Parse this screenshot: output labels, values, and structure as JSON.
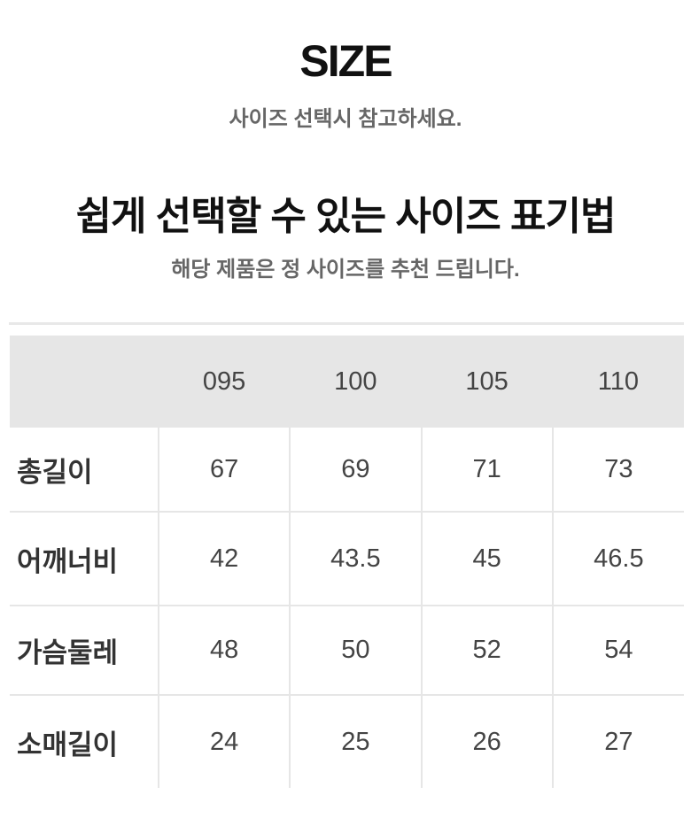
{
  "title": "SIZE",
  "subtitle": "사이즈 선택시 참고하세요.",
  "heading": "쉽게 선택할 수 있는 사이즈 표기법",
  "heading_sub": "해당 제품은 정 사이즈를 추천 드립니다.",
  "table": {
    "columns": [
      "",
      "095",
      "100",
      "105",
      "110"
    ],
    "rows": [
      {
        "label": "총길이",
        "values": [
          "67",
          "69",
          "71",
          "73"
        ]
      },
      {
        "label": "어깨너비",
        "values": [
          "42",
          "43.5",
          "45",
          "46.5"
        ]
      },
      {
        "label": "가슴둘레",
        "values": [
          "48",
          "50",
          "52",
          "54"
        ]
      },
      {
        "label": "소매길이",
        "values": [
          "24",
          "25",
          "26",
          "27"
        ]
      }
    ]
  }
}
